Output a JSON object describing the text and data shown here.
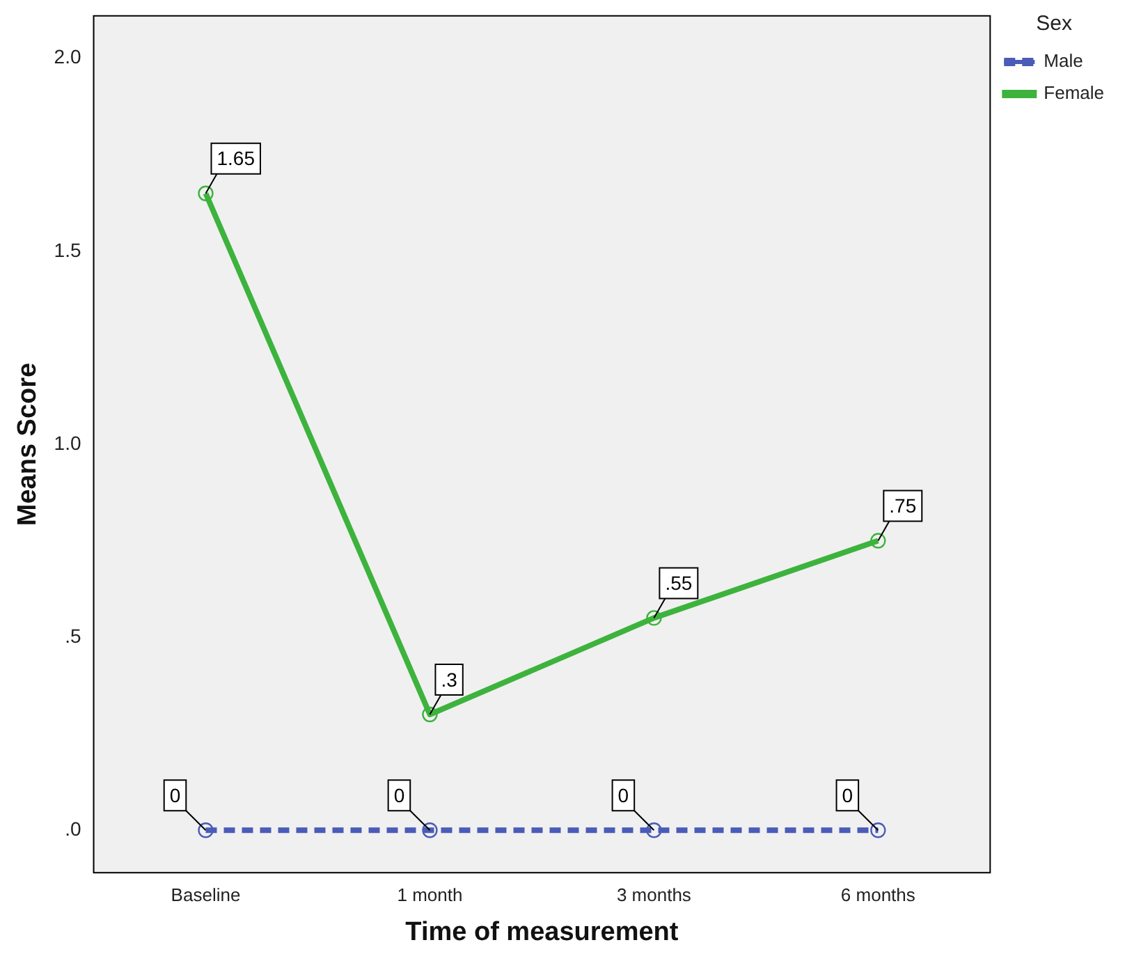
{
  "chart_data": {
    "type": "line",
    "xlabel": "Time of measurement",
    "ylabel": "Means Score",
    "legend_title": "Sex",
    "legend": "top right",
    "marker": "circle",
    "grid": false,
    "categories": [
      "Baseline",
      "1 month",
      "3 months",
      "6 months"
    ],
    "ylim": [
      -0.11,
      2.11
    ],
    "yticks": [
      {
        "value": 0,
        "label": ".0"
      },
      {
        "value": 0.5,
        "label": ".5"
      },
      {
        "value": 1,
        "label": "1.0"
      },
      {
        "value": 1.5,
        "label": "1.5"
      },
      {
        "value": 2,
        "label": "2.0"
      }
    ],
    "series": [
      {
        "name": "Male",
        "color": "#4a5cb8",
        "line_style": "dashed",
        "values": [
          0,
          0,
          0,
          0
        ],
        "value_labels": [
          "0",
          "0",
          "0",
          "0"
        ]
      },
      {
        "name": "Female",
        "color": "#3db33d",
        "line_style": "solid",
        "values": [
          1.65,
          0.3,
          0.55,
          0.75
        ],
        "value_labels": [
          "1.65",
          ".3",
          ".55",
          ".75"
        ]
      }
    ]
  }
}
